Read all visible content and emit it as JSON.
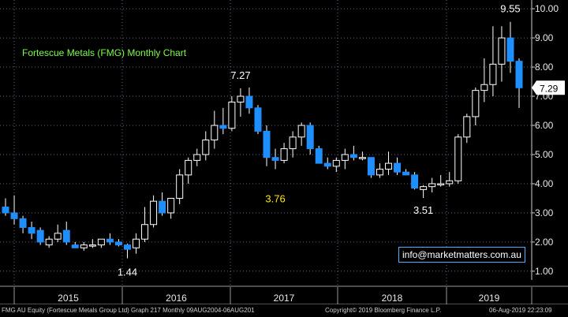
{
  "chart_data": {
    "type": "candlestick",
    "title": "Fortescue Metals (FMG) Monthly Chart",
    "y_ticks": [
      "1.00",
      "2.00",
      "3.00",
      "4.00",
      "5.00",
      "6.00",
      "7.00",
      "8.00",
      "9.00",
      "10.00"
    ],
    "ylim": [
      0.7,
      10.3
    ],
    "x_year_labels": [
      "2015",
      "2016",
      "2017",
      "2018",
      "2019"
    ],
    "last_price": "7.29",
    "annotations": [
      {
        "text": "1.44"
      },
      {
        "text": "7.27"
      },
      {
        "text": "3.76"
      },
      {
        "text": "3.51"
      },
      {
        "text": "9.55"
      }
    ],
    "candles": [
      [
        3.2,
        3.5,
        2.9,
        3.0
      ],
      [
        3.0,
        3.6,
        2.6,
        2.8
      ],
      [
        2.8,
        2.9,
        2.3,
        2.5
      ],
      [
        2.5,
        2.7,
        2.1,
        2.3
      ],
      [
        2.4,
        2.5,
        1.9,
        2.0
      ],
      [
        1.9,
        2.2,
        1.8,
        2.1
      ],
      [
        2.1,
        2.6,
        2.0,
        2.3
      ],
      [
        2.4,
        2.7,
        1.9,
        2.0
      ],
      [
        1.9,
        2.0,
        1.8,
        1.8
      ],
      [
        1.8,
        2.0,
        1.7,
        1.9
      ],
      [
        1.9,
        2.1,
        1.8,
        1.9
      ],
      [
        1.9,
        2.1,
        1.8,
        2.1
      ],
      [
        2.1,
        2.3,
        1.9,
        2.0
      ],
      [
        2.0,
        2.1,
        1.85,
        1.9
      ],
      [
        1.9,
        1.95,
        1.44,
        1.75
      ],
      [
        1.8,
        2.3,
        1.6,
        2.1
      ],
      [
        2.1,
        3.2,
        2.0,
        2.6
      ],
      [
        2.6,
        3.6,
        2.5,
        3.4
      ],
      [
        3.4,
        3.7,
        2.9,
        3.0
      ],
      [
        3.0,
        3.5,
        2.8,
        3.5
      ],
      [
        3.5,
        4.5,
        3.3,
        4.3
      ],
      [
        4.3,
        4.9,
        4.0,
        4.8
      ],
      [
        4.8,
        5.2,
        4.6,
        5.0
      ],
      [
        5.0,
        5.8,
        4.8,
        5.5
      ],
      [
        5.5,
        6.5,
        5.2,
        6.0
      ],
      [
        6.0,
        6.6,
        5.7,
        5.9
      ],
      [
        5.9,
        7.0,
        5.8,
        6.8
      ],
      [
        6.8,
        7.27,
        6.3,
        7.0
      ],
      [
        7.0,
        7.3,
        6.4,
        6.6
      ],
      [
        6.6,
        6.7,
        5.7,
        5.8
      ],
      [
        5.8,
        6.0,
        4.6,
        4.9
      ],
      [
        4.9,
        5.2,
        4.5,
        4.8
      ],
      [
        4.8,
        5.4,
        4.7,
        5.2
      ],
      [
        5.2,
        5.8,
        4.9,
        5.6
      ],
      [
        5.6,
        6.1,
        5.3,
        6.0
      ],
      [
        6.0,
        6.1,
        5.0,
        5.2
      ],
      [
        5.2,
        5.3,
        4.7,
        4.7
      ],
      [
        4.7,
        4.9,
        4.5,
        4.6
      ],
      [
        4.6,
        4.9,
        4.4,
        4.8
      ],
      [
        4.8,
        5.2,
        4.5,
        5.0
      ],
      [
        5.0,
        5.3,
        4.8,
        4.9
      ],
      [
        4.9,
        5.1,
        4.8,
        4.9
      ],
      [
        4.9,
        4.9,
        4.2,
        4.3
      ],
      [
        4.3,
        4.7,
        4.2,
        4.5
      ],
      [
        4.5,
        5.1,
        4.3,
        4.7
      ],
      [
        4.7,
        4.9,
        4.3,
        4.4
      ],
      [
        4.4,
        4.5,
        4.3,
        4.3
      ],
      [
        4.3,
        4.4,
        3.8,
        3.85
      ],
      [
        3.8,
        3.95,
        3.51,
        3.9
      ],
      [
        3.9,
        4.2,
        3.7,
        4.0
      ],
      [
        4.0,
        4.3,
        3.9,
        4.0
      ],
      [
        4.0,
        4.4,
        3.9,
        4.1
      ],
      [
        4.1,
        5.7,
        4.0,
        5.6
      ],
      [
        5.6,
        6.4,
        5.4,
        6.3
      ],
      [
        6.3,
        7.3,
        6.0,
        7.2
      ],
      [
        7.2,
        8.3,
        6.8,
        7.4
      ],
      [
        7.4,
        9.4,
        7.0,
        8.1
      ],
      [
        8.1,
        9.4,
        7.5,
        9.0
      ],
      [
        9.0,
        9.55,
        7.8,
        8.2
      ],
      [
        8.2,
        8.3,
        6.6,
        7.29
      ]
    ]
  },
  "footer": {
    "left": "FMG AU Equity (Fortescue Metals Group Ltd) Graph 217  Monthly 09AUG2004-06AUG201",
    "mid": "Copyright© 2019 Bloomberg Finance L.P.",
    "right": "06-Aug-2019 22:23:09"
  },
  "badge": "info@marketmatters.com.au",
  "colors": {
    "background": "#000000",
    "up_candle": "#ffffff",
    "down_candle": "#1f8fff",
    "grid": "#5a6a80",
    "title": "#7CFC4A",
    "annotation_white": "#ffffff",
    "annotation_yellow": "#ffe900"
  }
}
